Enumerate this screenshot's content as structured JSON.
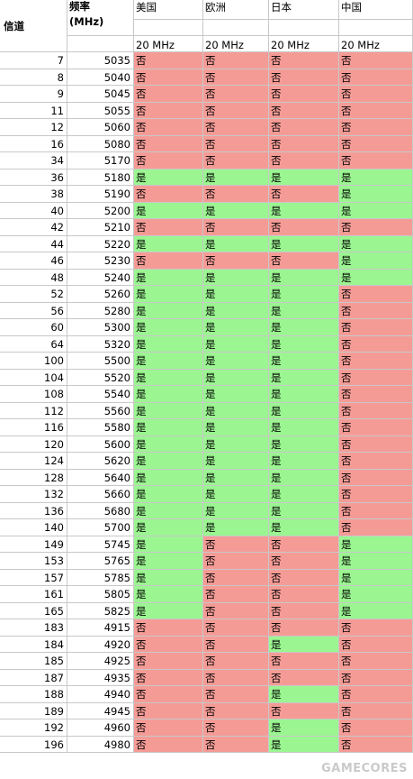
{
  "header": {
    "channel": "信道",
    "freq_line1": "频率",
    "freq_line2": "(MHz)",
    "regions": [
      "美国",
      "欧洲",
      "日本",
      "中国"
    ],
    "bandwidth": "20 MHz"
  },
  "yes_label": "是",
  "no_label": "否",
  "colors": {
    "yes": "#9bf591",
    "no": "#f59b96",
    "grid": "#c8c8c8"
  },
  "rows": [
    {
      "ch": "7",
      "freq": "5035",
      "v": [
        "否",
        "否",
        "否",
        "否"
      ]
    },
    {
      "ch": "8",
      "freq": "5040",
      "v": [
        "否",
        "否",
        "否",
        "否"
      ]
    },
    {
      "ch": "9",
      "freq": "5045",
      "v": [
        "否",
        "否",
        "否",
        "否"
      ]
    },
    {
      "ch": "11",
      "freq": "5055",
      "v": [
        "否",
        "否",
        "否",
        "否"
      ]
    },
    {
      "ch": "12",
      "freq": "5060",
      "v": [
        "否",
        "否",
        "否",
        "否"
      ]
    },
    {
      "ch": "16",
      "freq": "5080",
      "v": [
        "否",
        "否",
        "否",
        "否"
      ]
    },
    {
      "ch": "34",
      "freq": "5170",
      "v": [
        "否",
        "否",
        "否",
        "否"
      ]
    },
    {
      "ch": "36",
      "freq": "5180",
      "v": [
        "是",
        "是",
        "是",
        "是"
      ]
    },
    {
      "ch": "38",
      "freq": "5190",
      "v": [
        "否",
        "否",
        "否",
        "是"
      ]
    },
    {
      "ch": "40",
      "freq": "5200",
      "v": [
        "是",
        "是",
        "是",
        "是"
      ]
    },
    {
      "ch": "42",
      "freq": "5210",
      "v": [
        "否",
        "否",
        "否",
        "否"
      ]
    },
    {
      "ch": "44",
      "freq": "5220",
      "v": [
        "是",
        "是",
        "是",
        "是"
      ]
    },
    {
      "ch": "46",
      "freq": "5230",
      "v": [
        "否",
        "否",
        "否",
        "是"
      ]
    },
    {
      "ch": "48",
      "freq": "5240",
      "v": [
        "是",
        "是",
        "是",
        "是"
      ]
    },
    {
      "ch": "52",
      "freq": "5260",
      "v": [
        "是",
        "是",
        "是",
        "否"
      ]
    },
    {
      "ch": "56",
      "freq": "5280",
      "v": [
        "是",
        "是",
        "是",
        "否"
      ]
    },
    {
      "ch": "60",
      "freq": "5300",
      "v": [
        "是",
        "是",
        "是",
        "否"
      ]
    },
    {
      "ch": "64",
      "freq": "5320",
      "v": [
        "是",
        "是",
        "是",
        "否"
      ]
    },
    {
      "ch": "100",
      "freq": "5500",
      "v": [
        "是",
        "是",
        "是",
        "否"
      ]
    },
    {
      "ch": "104",
      "freq": "5520",
      "v": [
        "是",
        "是",
        "是",
        "否"
      ]
    },
    {
      "ch": "108",
      "freq": "5540",
      "v": [
        "是",
        "是",
        "是",
        "否"
      ]
    },
    {
      "ch": "112",
      "freq": "5560",
      "v": [
        "是",
        "是",
        "是",
        "否"
      ]
    },
    {
      "ch": "116",
      "freq": "5580",
      "v": [
        "是",
        "是",
        "是",
        "否"
      ]
    },
    {
      "ch": "120",
      "freq": "5600",
      "v": [
        "是",
        "是",
        "是",
        "否"
      ]
    },
    {
      "ch": "124",
      "freq": "5620",
      "v": [
        "是",
        "是",
        "是",
        "否"
      ]
    },
    {
      "ch": "128",
      "freq": "5640",
      "v": [
        "是",
        "是",
        "是",
        "否"
      ]
    },
    {
      "ch": "132",
      "freq": "5660",
      "v": [
        "是",
        "是",
        "是",
        "否"
      ]
    },
    {
      "ch": "136",
      "freq": "5680",
      "v": [
        "是",
        "是",
        "是",
        "否"
      ]
    },
    {
      "ch": "140",
      "freq": "5700",
      "v": [
        "是",
        "是",
        "是",
        "否"
      ]
    },
    {
      "ch": "149",
      "freq": "5745",
      "v": [
        "是",
        "否",
        "否",
        "是"
      ]
    },
    {
      "ch": "153",
      "freq": "5765",
      "v": [
        "是",
        "否",
        "否",
        "是"
      ]
    },
    {
      "ch": "157",
      "freq": "5785",
      "v": [
        "是",
        "否",
        "否",
        "是"
      ]
    },
    {
      "ch": "161",
      "freq": "5805",
      "v": [
        "是",
        "否",
        "否",
        "是"
      ]
    },
    {
      "ch": "165",
      "freq": "5825",
      "v": [
        "是",
        "否",
        "否",
        "是"
      ]
    },
    {
      "ch": "183",
      "freq": "4915",
      "v": [
        "否",
        "否",
        "否",
        "否"
      ]
    },
    {
      "ch": "184",
      "freq": "4920",
      "v": [
        "否",
        "否",
        "是",
        "否"
      ]
    },
    {
      "ch": "185",
      "freq": "4925",
      "v": [
        "否",
        "否",
        "否",
        "否"
      ]
    },
    {
      "ch": "187",
      "freq": "4935",
      "v": [
        "否",
        "否",
        "否",
        "否"
      ]
    },
    {
      "ch": "188",
      "freq": "4940",
      "v": [
        "否",
        "否",
        "是",
        "否"
      ]
    },
    {
      "ch": "189",
      "freq": "4945",
      "v": [
        "否",
        "否",
        "否",
        "否"
      ]
    },
    {
      "ch": "192",
      "freq": "4960",
      "v": [
        "否",
        "否",
        "是",
        "否"
      ]
    },
    {
      "ch": "196",
      "freq": "4980",
      "v": [
        "否",
        "否",
        "是",
        "否"
      ]
    }
  ],
  "watermark": "GAMECORES"
}
